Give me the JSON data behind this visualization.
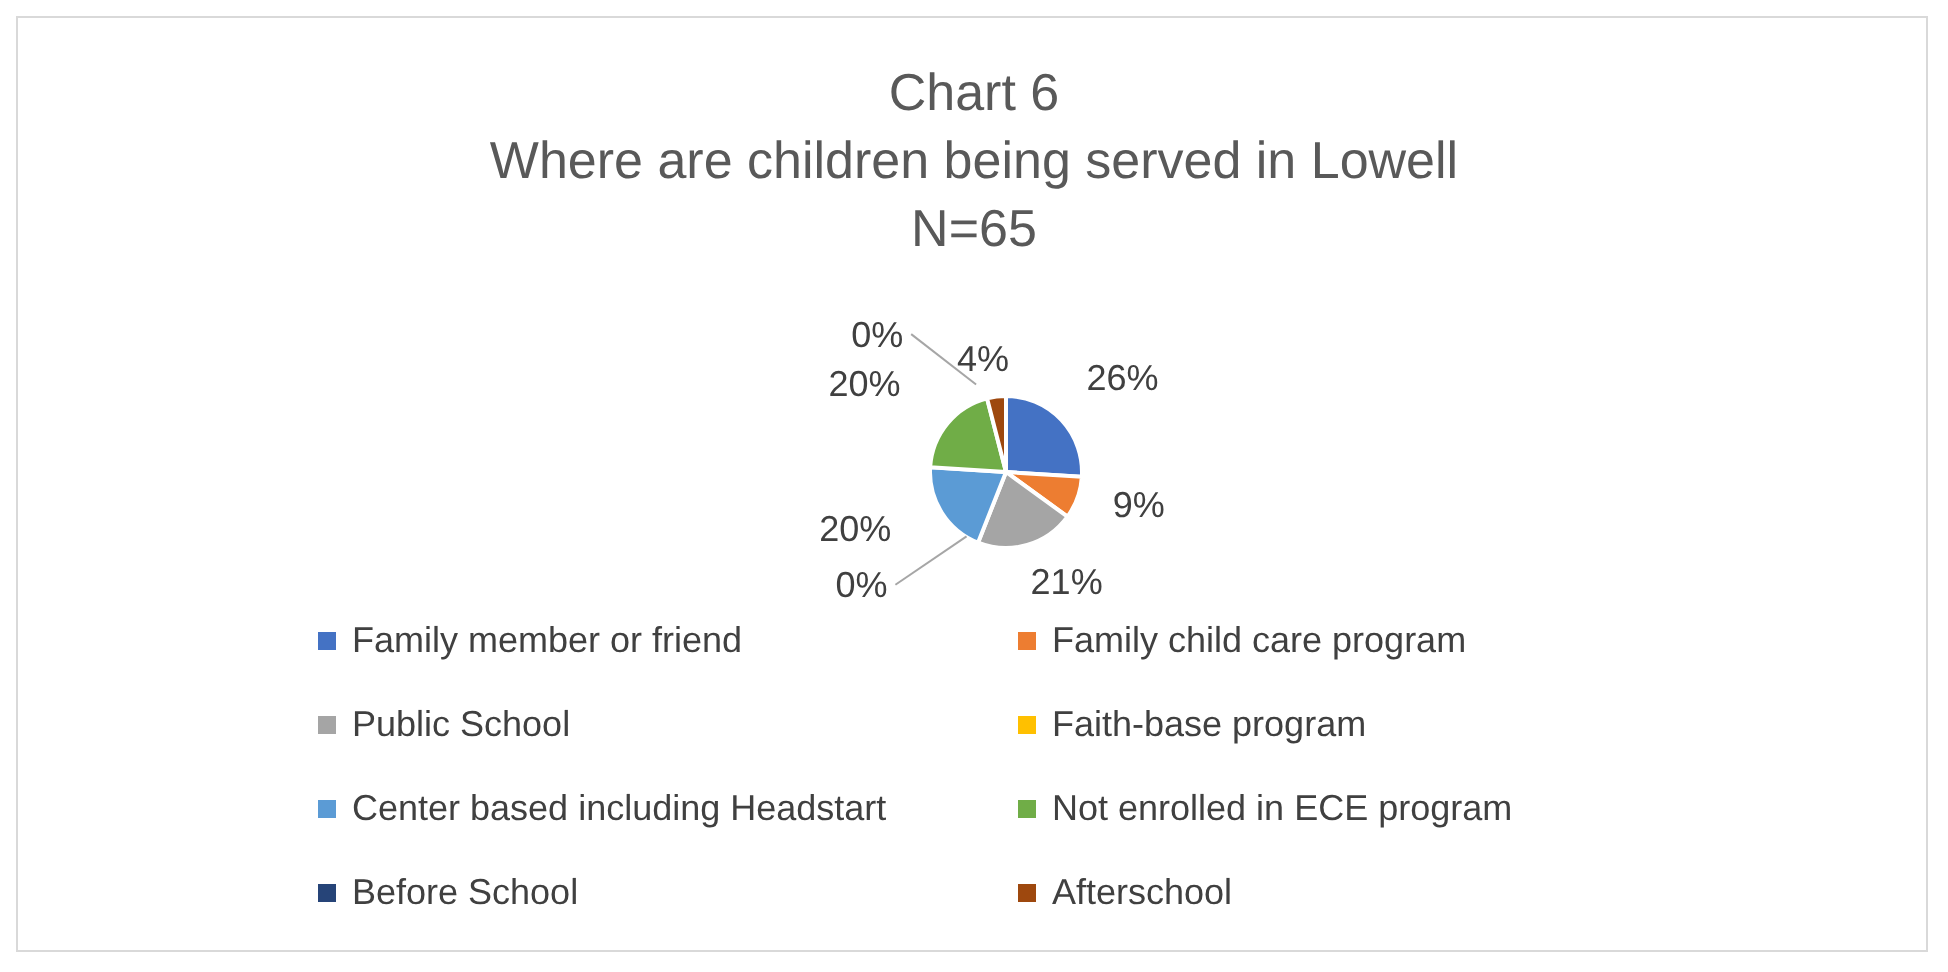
{
  "chart_data": {
    "type": "pie",
    "title": "Chart 6",
    "subtitle": "Where are children being served in Lowell",
    "annotations": [
      "N=65"
    ],
    "categories": [
      "Family member or friend",
      "Family child care program",
      "Public School",
      "Faith-base program",
      "Center based including Headstart",
      "Not enrolled in ECE program",
      "Before School",
      "Afterschool"
    ],
    "values": [
      26,
      9,
      21,
      0,
      20,
      20,
      0,
      4
    ],
    "colors": [
      "#4472c4",
      "#ed7d31",
      "#a5a5a5",
      "#ffc000",
      "#5b9bd5",
      "#70ad47",
      "#264478",
      "#9e480e"
    ],
    "value_labels": [
      "26%",
      "9%",
      "21%",
      "0%",
      "20%",
      "20%",
      "0%",
      "4%"
    ],
    "legend": "bottom"
  }
}
